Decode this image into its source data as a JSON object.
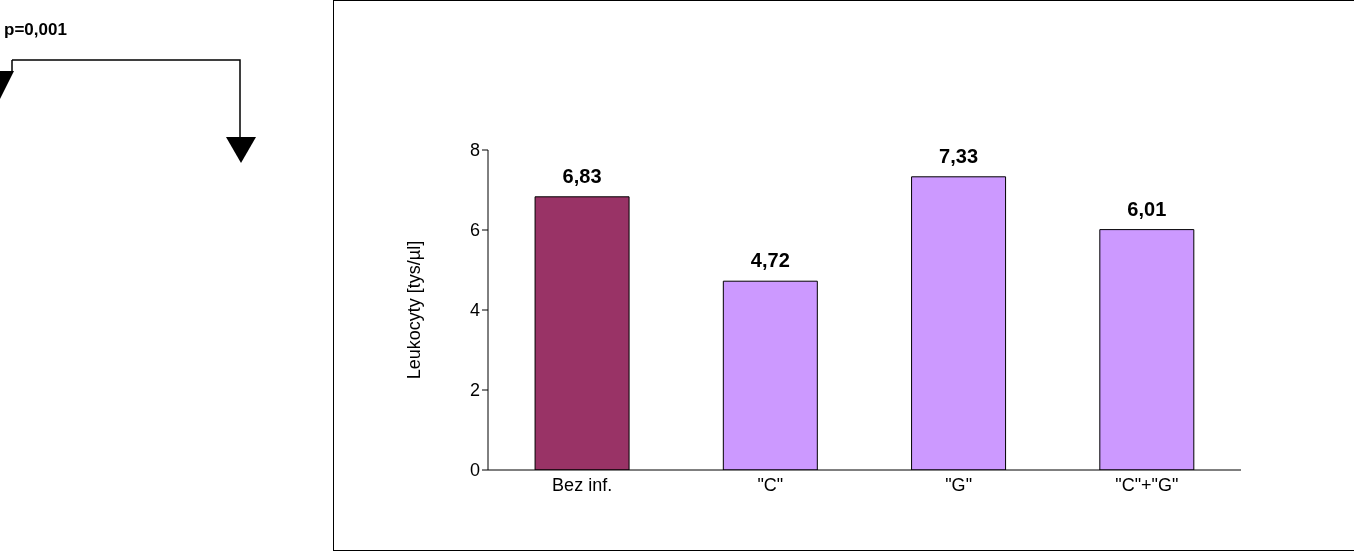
{
  "chart_data": {
    "type": "bar",
    "categories": [
      "Bez inf.",
      "\"C\"",
      "\"G\"",
      "\"C\"+\"G\""
    ],
    "values": [
      6.83,
      4.72,
      7.33,
      6.01
    ],
    "colors": [
      "#993366",
      "#cc99ff",
      "#cc99ff",
      "#cc99ff"
    ],
    "value_labels": [
      "6,83",
      "4,72",
      "7,33",
      "6,01"
    ],
    "ylabel": "Leukocyty [tys/µl]",
    "ylim": [
      0,
      8
    ],
    "yticks": [
      0,
      2,
      4,
      6,
      8
    ],
    "annotations": [
      "p=0,001"
    ]
  }
}
